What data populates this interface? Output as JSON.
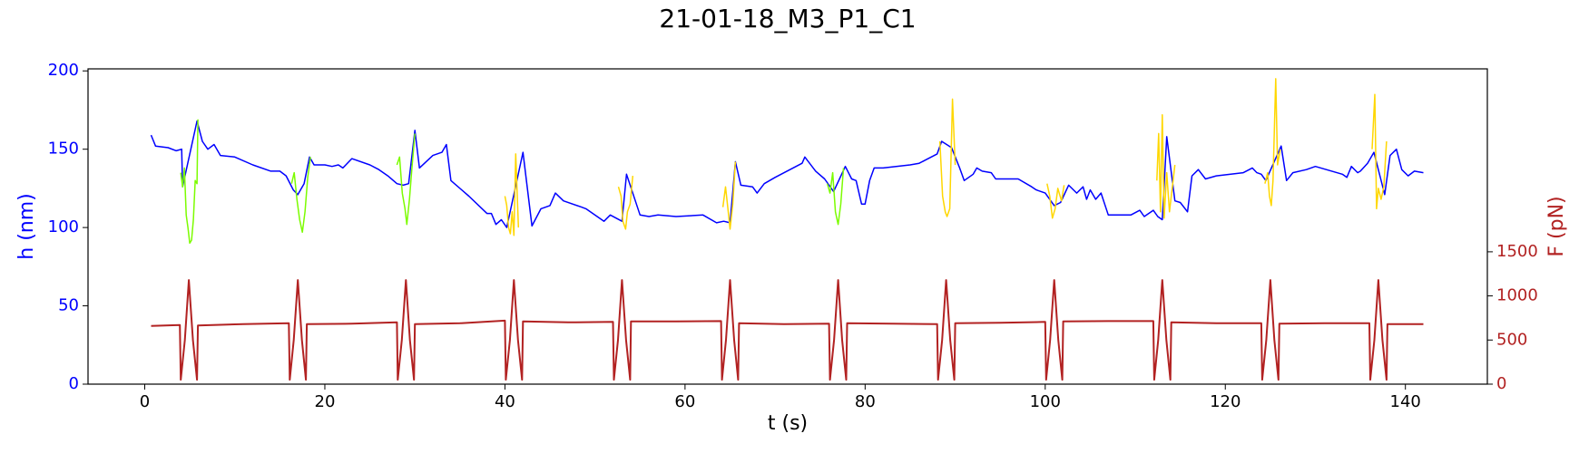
{
  "chart_data": {
    "type": "line",
    "title": "21-01-18_M3_P1_C1",
    "x_label": "t (s)",
    "y_label": "h (nm)",
    "y2_label": "F (pN)",
    "y_color": "#0000ff",
    "y2_color": "#b22222",
    "xlim": [
      -6.3,
      149.1
    ],
    "xticks": [
      0,
      20,
      40,
      60,
      80,
      100,
      120,
      140
    ],
    "ylim": [
      0,
      201.3
    ],
    "yticks": [
      0,
      50,
      100,
      150,
      200
    ],
    "y2lim": [
      0,
      3573
    ],
    "y2ticks": [
      0,
      500,
      1000,
      1500
    ],
    "grid": false,
    "series": [
      {
        "color": "#0000ff",
        "x": [
          0.7,
          1.2,
          2.6,
          3.5,
          4.1,
          4.2,
          5.8,
          6.4,
          7.0,
          7.7,
          8.4,
          10,
          12,
          14,
          15,
          15.7,
          16.5,
          17.0,
          17.7,
          18.3,
          18.8,
          20,
          20.8,
          21.5,
          22,
          23,
          25,
          26,
          27,
          28,
          28.7,
          29.3,
          30.0,
          30.5,
          32,
          33,
          33.5,
          34,
          36,
          38,
          38.5,
          39,
          39.6,
          40.2,
          42,
          43,
          44,
          45,
          45.6,
          46.5,
          48.5,
          49,
          51,
          51.7,
          53,
          53.5,
          55,
          56,
          57,
          59,
          62,
          63.5,
          64.3,
          65,
          65.6,
          66.2,
          67.5,
          68,
          68.8,
          70,
          73,
          73.3,
          74.5,
          75.5,
          76.5,
          77.8,
          78.5,
          79,
          79.6,
          80,
          80.5,
          81,
          82,
          85,
          86,
          87,
          88,
          88.5,
          89.6,
          90.5,
          91,
          92,
          92.4,
          93,
          94,
          94.5,
          97,
          98.5,
          99,
          100,
          101,
          101.7,
          102.6,
          103.5,
          104.2,
          104.6,
          105,
          105.6,
          106.2,
          107,
          109.5,
          110.5,
          111,
          112,
          112.5,
          113,
          113.5,
          114.4,
          115,
          115.4,
          115.8,
          116.3,
          117,
          117.8,
          119,
          122,
          123,
          123.5,
          124,
          124.5,
          126.2,
          126.8,
          127.5,
          129,
          130,
          133,
          133.5,
          134,
          134.7,
          135,
          135.8,
          136.5,
          137.7,
          138.3,
          139,
          139.6,
          140.3,
          141,
          142
        ],
        "values": [
          159,
          152,
          151,
          149,
          150,
          126,
          168,
          155,
          150,
          153,
          146,
          145,
          140,
          136,
          136,
          133,
          124,
          121,
          128,
          145,
          140,
          140,
          139,
          140,
          138,
          144,
          140,
          137,
          133,
          128,
          127,
          128,
          162,
          138,
          146,
          148,
          153,
          130,
          120,
          109,
          109,
          102,
          105,
          100,
          148,
          101,
          112,
          114,
          122,
          117,
          113,
          112,
          104,
          108,
          104,
          134,
          108,
          107,
          108,
          107,
          108,
          103,
          104,
          103,
          142,
          127,
          126,
          122,
          128,
          132,
          141,
          145,
          136,
          131,
          123,
          139,
          131,
          130,
          115,
          115,
          130,
          138,
          138,
          140,
          141,
          144,
          147,
          155,
          151,
          138,
          130,
          134,
          138,
          136,
          135,
          131,
          131,
          126,
          124,
          122,
          114,
          116,
          127,
          122,
          126,
          118,
          124,
          118,
          122,
          108,
          108,
          111,
          107,
          111,
          107,
          105,
          158,
          117,
          116,
          113,
          110,
          133,
          137,
          131,
          133,
          135,
          138,
          135,
          134,
          130,
          152,
          130,
          135,
          137,
          139,
          134,
          132,
          139,
          135,
          136,
          141,
          148,
          121,
          146,
          150,
          137,
          133,
          136,
          135
        ]
      },
      {
        "color": "#7cfc00",
        "x": [
          4.0,
          4.2,
          4.4,
          4.6,
          4.8,
          5.0,
          5.2,
          5.4,
          5.6,
          5.8,
          5.9,
          11,
          16.3,
          16.6,
          16.9,
          17.2,
          17.5,
          17.8,
          18.1,
          18.4,
          23,
          28.0,
          28.3,
          28.6,
          28.9,
          29.1,
          29.4,
          29.7,
          30.0,
          50,
          75.8,
          76.1,
          76.4,
          76.7,
          77.0,
          77.3,
          77.6
        ],
        "values": [
          135,
          126,
          138,
          108,
          100,
          90,
          92,
          105,
          130,
          128,
          169,
          null,
          128,
          135,
          118,
          105,
          97,
          110,
          132,
          145,
          null,
          140,
          145,
          122,
          112,
          102,
          118,
          140,
          160,
          null,
          128,
          122,
          135,
          110,
          102,
          115,
          138
        ]
      },
      {
        "color": "#ffd700",
        "x": [
          40.0,
          40.2,
          40.4,
          40.6,
          40.8,
          41.0,
          41.2,
          41.5,
          47,
          52.6,
          52.9,
          53.1,
          53.4,
          53.6,
          53.9,
          54.2,
          59,
          64.2,
          64.5,
          64.8,
          65.0,
          65.3,
          65.6,
          77,
          88.3,
          88.6,
          88.9,
          89.1,
          89.4,
          89.7,
          90.0,
          95,
          100.2,
          100.5,
          100.8,
          101.1,
          101.4,
          101.8,
          102.1,
          107,
          112.4,
          112.6,
          112.8,
          113.0,
          113.2,
          113.5,
          113.8,
          114.1,
          114.4,
          119,
          124.4,
          124.7,
          124.9,
          125.1,
          125.3,
          125.6,
          125.8,
          126.1,
          131,
          136.3,
          136.6,
          136.8,
          137.0,
          137.3,
          137.6,
          137.9
        ],
        "values": [
          120,
          114,
          100,
          96,
          110,
          95,
          147,
          100,
          null,
          126,
          120,
          104,
          99,
          110,
          115,
          133,
          null,
          113,
          126,
          110,
          99,
          115,
          142,
          null,
          155,
          120,
          110,
          107,
          112,
          182,
          140,
          null,
          128,
          120,
          106,
          112,
          125,
          117,
          127,
          null,
          130,
          160,
          110,
          172,
          106,
          135,
          110,
          125,
          140,
          null,
          128,
          135,
          120,
          114,
          130,
          195,
          140,
          150,
          null,
          150,
          185,
          112,
          125,
          118,
          126,
          155
        ]
      },
      {
        "color": "#b22222",
        "axis": "y2",
        "x": [
          0.7,
          3.9,
          4.0,
          4.45,
          4.9,
          5.35,
          5.8,
          5.9,
          10.9,
          16.0,
          16.1,
          16.55,
          17.0,
          17.45,
          17.9,
          18.0,
          23,
          28.0,
          28.1,
          28.55,
          29.0,
          29.45,
          29.9,
          30.0,
          35,
          40.0,
          40.1,
          40.55,
          41.0,
          41.45,
          41.9,
          42.0,
          47,
          52.0,
          52.1,
          52.55,
          53.0,
          53.45,
          53.9,
          54.0,
          59,
          64.0,
          64.1,
          64.55,
          65.0,
          65.45,
          65.9,
          66.0,
          71,
          76.0,
          76.1,
          76.55,
          77.0,
          77.45,
          77.9,
          78.0,
          83,
          88.0,
          88.1,
          88.55,
          89.0,
          89.45,
          89.9,
          90.0,
          95,
          100.0,
          100.1,
          100.55,
          101.0,
          101.45,
          101.9,
          102.0,
          107,
          112.0,
          112.1,
          112.55,
          113.0,
          113.45,
          113.9,
          114.0,
          119,
          124.0,
          124.1,
          124.55,
          125.0,
          125.45,
          125.9,
          126.0,
          131,
          136.0,
          136.1,
          136.55,
          137.0,
          137.45,
          137.9,
          138.0,
          142
        ],
        "values": [
          660,
          670,
          50,
          500,
          1180,
          500,
          50,
          665,
          680,
          690,
          50,
          500,
          1180,
          500,
          50,
          680,
          685,
          700,
          50,
          500,
          1180,
          500,
          50,
          680,
          690,
          720,
          50,
          500,
          1180,
          500,
          50,
          710,
          700,
          705,
          50,
          500,
          1180,
          500,
          50,
          710,
          710,
          715,
          50,
          500,
          1180,
          500,
          50,
          690,
          680,
          685,
          50,
          500,
          1180,
          500,
          50,
          690,
          685,
          680,
          50,
          500,
          1180,
          500,
          50,
          690,
          695,
          705,
          50,
          500,
          1180,
          500,
          50,
          710,
          715,
          715,
          50,
          500,
          1180,
          500,
          50,
          700,
          690,
          690,
          50,
          500,
          1180,
          500,
          50,
          685,
          690,
          690,
          50,
          500,
          1180,
          500,
          50,
          680,
          680
        ]
      }
    ]
  }
}
